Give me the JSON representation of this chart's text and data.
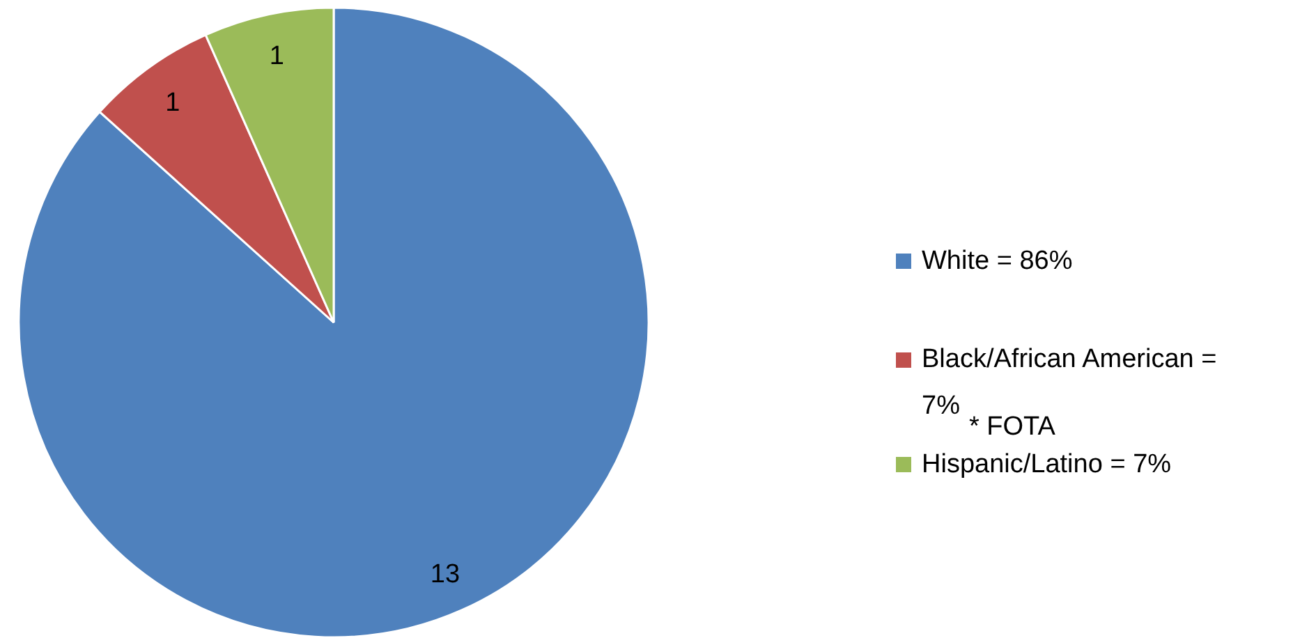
{
  "chart_data": {
    "type": "pie",
    "categories": [
      "White = 86%",
      "Black/African American = 7%",
      "Hispanic/Latino = 7%"
    ],
    "values": [
      13,
      1,
      1
    ],
    "colors": [
      "#4f81bd",
      "#c0504d",
      "#9bbb59"
    ],
    "data_labels": true,
    "legend": "right",
    "annotations": [
      "* FOTA"
    ]
  }
}
